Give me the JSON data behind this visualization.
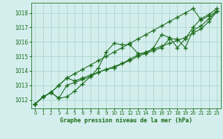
{
  "xlabel": "Graphe pression niveau de la mer (hPa)",
  "ylim": [
    1011.4,
    1018.7
  ],
  "xlim": [
    -0.5,
    23.5
  ],
  "yticks": [
    1012,
    1013,
    1014,
    1015,
    1016,
    1017,
    1018
  ],
  "xticks": [
    0,
    1,
    2,
    3,
    4,
    5,
    6,
    7,
    8,
    9,
    10,
    11,
    12,
    13,
    14,
    15,
    16,
    17,
    18,
    19,
    20,
    21,
    22,
    23
  ],
  "bg_color": "#d4eeed",
  "grid_color": "#b0d8d5",
  "line_color": "#1a6b1a",
  "series": [
    [
      1011.7,
      1012.2,
      1012.5,
      1012.1,
      1012.2,
      1012.6,
      1013.1,
      1013.6,
      1014.2,
      1015.3,
      1015.9,
      1015.8,
      1015.8,
      1015.2,
      1015.2,
      1015.6,
      1016.5,
      1016.3,
      1015.6,
      1016.2,
      1017.0,
      1017.6,
      1017.9,
      1018.3
    ],
    [
      1011.7,
      1012.2,
      1012.5,
      1013.0,
      1013.5,
      1013.3,
      1013.5,
      1013.7,
      1013.9,
      1014.1,
      1014.3,
      1014.5,
      1014.8,
      1015.1,
      1015.3,
      1015.5,
      1015.7,
      1015.9,
      1016.1,
      1016.3,
      1016.6,
      1016.9,
      1017.4,
      1018.1
    ],
    [
      1011.7,
      1012.2,
      1012.5,
      1012.1,
      1013.0,
      1013.2,
      1013.4,
      1013.6,
      1013.9,
      1014.1,
      1014.2,
      1014.5,
      1014.7,
      1015.0,
      1015.2,
      1015.4,
      1015.6,
      1016.2,
      1016.2,
      1015.6,
      1016.8,
      1017.1,
      1017.6,
      1018.1
    ],
    [
      1011.7,
      1012.2,
      1012.5,
      1013.0,
      1013.5,
      1013.8,
      1014.1,
      1014.4,
      1014.7,
      1015.0,
      1015.3,
      1015.6,
      1015.9,
      1016.2,
      1016.5,
      1016.8,
      1017.1,
      1017.4,
      1017.7,
      1018.0,
      1018.3,
      1017.5,
      1017.8,
      1018.1
    ]
  ]
}
